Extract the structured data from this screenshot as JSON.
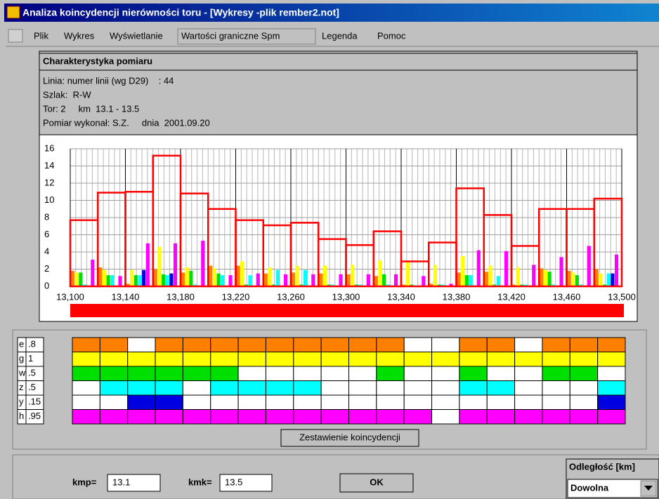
{
  "window": {
    "title": "Analiza koincydencji nierówności toru - [Wykresy -plik rember2.not]"
  },
  "menu": [
    "Plik",
    "Wykres",
    "Wyświetlanie",
    "Wartości graniczne Spm",
    "Legenda",
    "Pomoc"
  ],
  "info": {
    "heading": "Charakterystyka pomiaru",
    "lines": [
      "Linia: numer linii (wg D29)    : 44",
      "Szlak:  R-W",
      "Tor: 2     km  13.1 - 13.5",
      "Pomiar wykonał: S.Z.     dnia  2001.09.20"
    ]
  },
  "chart": {
    "type": "bar",
    "xlim": [
      13.1,
      13.5
    ],
    "xticks": [
      {
        "value": 13.1,
        "label": "13,100"
      },
      {
        "value": 13.14,
        "label": "13,140"
      },
      {
        "value": 13.18,
        "label": "13,180"
      },
      {
        "value": 13.22,
        "label": "13,220"
      },
      {
        "value": 13.26,
        "label": "13,260"
      },
      {
        "value": 13.3,
        "label": "13,300"
      },
      {
        "value": 13.34,
        "label": "13,340"
      },
      {
        "value": 13.38,
        "label": "13,380"
      },
      {
        "value": 13.42,
        "label": "13,420"
      },
      {
        "value": 13.46,
        "label": "13,460"
      },
      {
        "value": 13.5,
        "label": "13,500"
      }
    ],
    "ylim": [
      0,
      16
    ],
    "yticks": [
      0,
      2,
      4,
      6,
      8,
      10,
      12,
      14,
      16
    ],
    "grid": true,
    "limit": {
      "color": "#ff0000",
      "values": [
        7.7,
        10.9,
        11.0,
        15.2,
        10.8,
        9.0,
        7.7,
        7.1,
        7.4,
        5.5,
        4.8,
        6.4,
        2.9,
        5.1,
        11.4,
        8.3,
        4.7,
        9.0,
        9.0,
        10.2
      ]
    },
    "series": [
      {
        "name": "e",
        "threshold": {
          "value": 0.8,
          "label": ".8"
        },
        "color": "#ff8000",
        "values": [
          1.8,
          2.2,
          0.3,
          2.0,
          1.6,
          2.4,
          2.4,
          1.5,
          1.6,
          1.5,
          1.4,
          1.2,
          0.2,
          0.3,
          1.6,
          1.7,
          0.2,
          2.1,
          1.8,
          2.0
        ]
      },
      {
        "name": "g",
        "threshold": 1,
        "color": "#ffff00",
        "values": [
          1.6,
          1.9,
          1.9,
          4.6,
          2.2,
          2.1,
          2.9,
          2.2,
          2.4,
          2.4,
          2.5,
          3.0,
          2.9,
          2.5,
          3.5,
          2.4,
          2.2,
          1.9,
          1.6,
          1.5
        ]
      },
      {
        "name": "w",
        "threshold": {
          "value": 0.5,
          "label": ".5"
        },
        "color": "#00e000",
        "values": [
          1.6,
          1.3,
          1.3,
          1.4,
          1.8,
          1.5,
          0.2,
          0.2,
          0.2,
          0.2,
          0.2,
          1.4,
          0.2,
          0.2,
          1.3,
          0.2,
          0.2,
          1.7,
          1.3,
          0.2
        ]
      },
      {
        "name": "z",
        "threshold": {
          "value": 0.5,
          "label": ".5"
        },
        "color": "#00ffff",
        "values": [
          0.2,
          1.3,
          1.3,
          1.3,
          0.2,
          1.3,
          1.3,
          1.9,
          1.9,
          0.2,
          0.2,
          0.2,
          0.1,
          0.2,
          1.3,
          1.2,
          0.2,
          0.2,
          0.2,
          1.5
        ]
      },
      {
        "name": "y",
        "threshold": {
          "value": 0.15,
          "label": ".15"
        },
        "color": "#0000e0",
        "values": [
          0.1,
          0.1,
          1.9,
          1.5,
          0.1,
          0.1,
          0.1,
          0.1,
          0.1,
          0.1,
          0.1,
          0.1,
          0.1,
          0.1,
          0.1,
          0.1,
          0.1,
          0.1,
          0.1,
          1.5
        ]
      },
      {
        "name": "h",
        "threshold": {
          "value": 0.95,
          "label": ".95"
        },
        "color": "#ff00ff",
        "values": [
          3.1,
          1.2,
          5.0,
          5.0,
          5.3,
          1.3,
          1.5,
          1.4,
          1.4,
          1.4,
          1.4,
          1.4,
          1.2,
          0.3,
          4.2,
          4.1,
          2.5,
          3.4,
          4.7,
          3.7
        ]
      }
    ]
  },
  "button": "Zestawienie koincydencji",
  "controls": {
    "kmp_label": "kmp=",
    "kmp": "13.1",
    "kmk_label": "kmk=",
    "kmk": "13.5",
    "ok": "OK",
    "distance_label": "Odległość [km]",
    "distance": "Dowolna"
  }
}
